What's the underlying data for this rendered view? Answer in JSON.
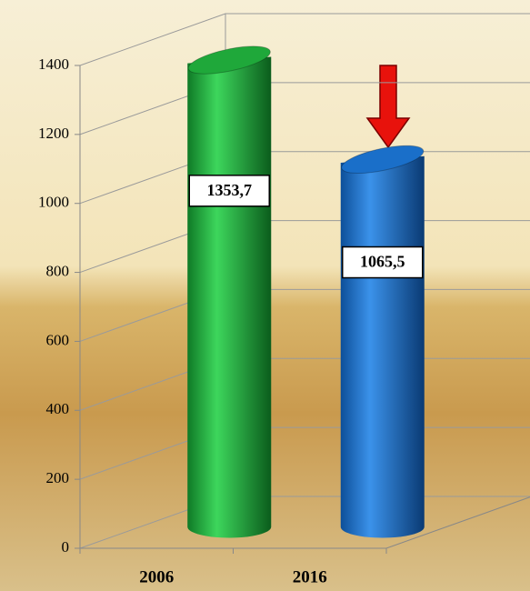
{
  "chart_data": {
    "type": "bar",
    "categories": [
      "2006",
      "2016"
    ],
    "values": [
      1353.7,
      1065.5
    ],
    "value_labels": [
      "1353,7",
      "1065,5"
    ],
    "colors": [
      "#1fa83a",
      "#1a6fc9"
    ],
    "ylim": [
      0,
      1400
    ],
    "yticks": [
      0,
      200,
      400,
      600,
      800,
      1000,
      1200,
      1400
    ],
    "grid": true
  }
}
